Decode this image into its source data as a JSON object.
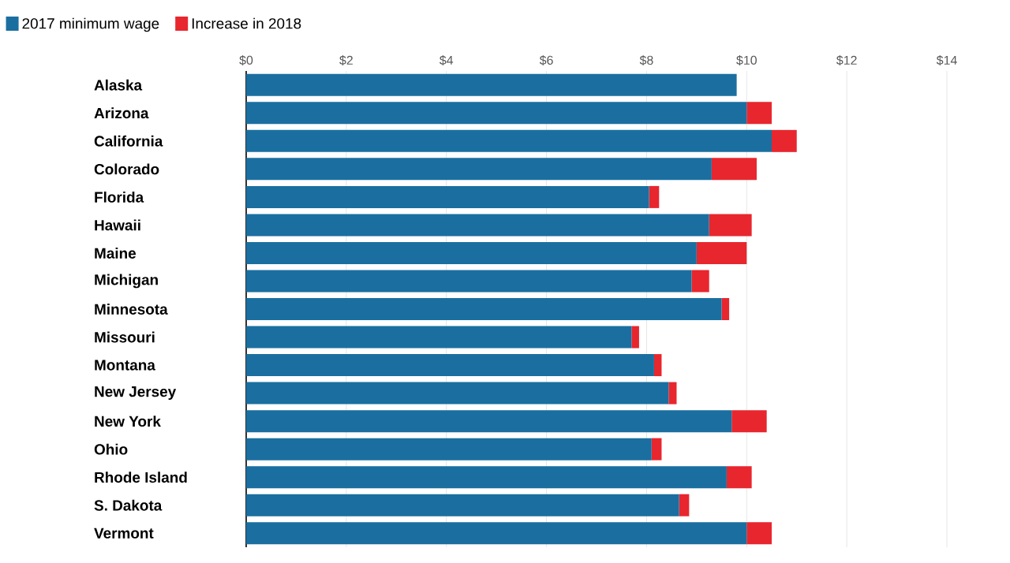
{
  "chart_data": {
    "type": "bar",
    "orientation": "horizontal",
    "stacked": true,
    "categories": [
      "Alaska",
      "Arizona",
      "California",
      "Colorado",
      "Florida",
      "Hawaii",
      "Maine",
      "Michigan",
      "Minnesota",
      "Missouri",
      "Montana",
      "New Jersey",
      "New York",
      "Ohio",
      "Rhode Island",
      "S. Dakota",
      "Vermont"
    ],
    "series": [
      {
        "name": "2017 minimum wage",
        "color": "#1a6fa0",
        "values": [
          9.8,
          10.0,
          10.5,
          9.3,
          8.05,
          9.25,
          9.0,
          8.9,
          9.5,
          7.7,
          8.15,
          8.44,
          9.7,
          8.1,
          9.6,
          8.65,
          10.0
        ]
      },
      {
        "name": "Increase in 2018",
        "color": "#e8262e",
        "values": [
          0,
          0.5,
          0.5,
          0.9,
          0.2,
          0.85,
          1.0,
          0.35,
          0.15,
          0.15,
          0.15,
          0.16,
          0.7,
          0.2,
          0.5,
          0.2,
          0.5
        ]
      }
    ],
    "xlim": [
      0,
      14
    ],
    "xticks": [
      {
        "value": 0,
        "label": "$0"
      },
      {
        "value": 2,
        "label": "$2"
      },
      {
        "value": 4,
        "label": "$4"
      },
      {
        "value": 6,
        "label": "$6"
      },
      {
        "value": 8,
        "label": "$8"
      },
      {
        "value": 10,
        "label": "$10"
      },
      {
        "value": 12,
        "label": "$12"
      },
      {
        "value": 14,
        "label": "$14"
      }
    ],
    "grid": "x",
    "legend": "top left"
  }
}
